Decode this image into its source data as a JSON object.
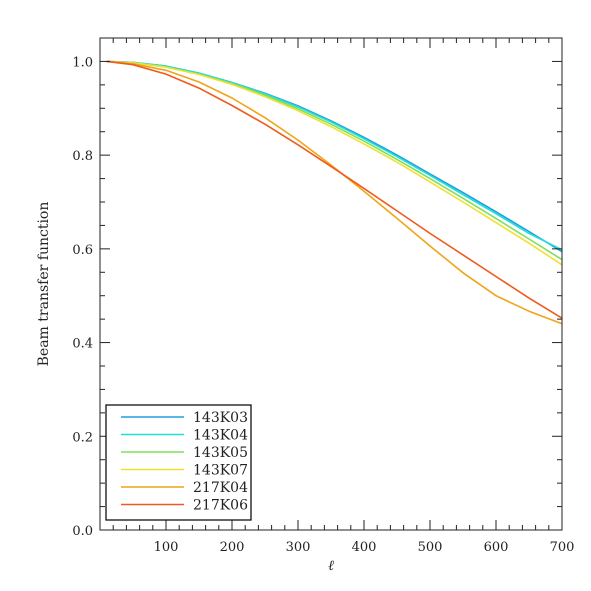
{
  "chart_data": {
    "type": "line",
    "title": "",
    "xlabel": "ℓ",
    "ylabel": "Beam transfer function",
    "xlim": [
      0,
      700
    ],
    "ylim": [
      0.0,
      1.05
    ],
    "xticks": [
      100,
      200,
      300,
      400,
      500,
      600,
      700
    ],
    "yticks": [
      0.0,
      0.2,
      0.4,
      0.6,
      0.8,
      1.0
    ],
    "xtick_labels": [
      "100",
      "200",
      "300",
      "400",
      "500",
      "600",
      "700"
    ],
    "ytick_labels": [
      "0.0",
      "0.2",
      "0.4",
      "0.6",
      "0.8",
      "1.0"
    ],
    "grid": false,
    "legend_position": "bottom-left",
    "series": [
      {
        "name": "143K03",
        "color": "#1f9fe0",
        "x": [
          10,
          50,
          100,
          150,
          200,
          250,
          300,
          350,
          400,
          450,
          500,
          550,
          600,
          650,
          700
        ],
        "y": [
          1.0,
          0.998,
          0.99,
          0.975,
          0.955,
          0.932,
          0.905,
          0.873,
          0.838,
          0.8,
          0.76,
          0.72,
          0.679,
          0.637,
          0.594
        ]
      },
      {
        "name": "143K04",
        "color": "#22dcd8",
        "x": [
          10,
          50,
          100,
          150,
          200,
          250,
          300,
          350,
          400,
          450,
          500,
          550,
          600,
          650,
          700
        ],
        "y": [
          1.0,
          0.998,
          0.99,
          0.975,
          0.955,
          0.931,
          0.903,
          0.871,
          0.835,
          0.797,
          0.757,
          0.716,
          0.675,
          0.633,
          0.598
        ]
      },
      {
        "name": "143K05",
        "color": "#7ee05a",
        "x": [
          10,
          50,
          100,
          150,
          200,
          250,
          300,
          350,
          400,
          450,
          500,
          550,
          600,
          650,
          700
        ],
        "y": [
          1.0,
          0.997,
          0.988,
          0.973,
          0.953,
          0.928,
          0.899,
          0.866,
          0.83,
          0.791,
          0.75,
          0.708,
          0.665,
          0.621,
          0.577
        ]
      },
      {
        "name": "143K07",
        "color": "#f0e030",
        "x": [
          10,
          50,
          100,
          150,
          200,
          250,
          300,
          350,
          400,
          450,
          500,
          550,
          600,
          650,
          700
        ],
        "y": [
          1.0,
          0.997,
          0.988,
          0.972,
          0.951,
          0.925,
          0.895,
          0.861,
          0.824,
          0.785,
          0.743,
          0.7,
          0.656,
          0.612,
          0.566
        ]
      },
      {
        "name": "217K04",
        "color": "#f0a418",
        "x": [
          10,
          50,
          100,
          150,
          200,
          250,
          300,
          350,
          400,
          450,
          500,
          550,
          600,
          650,
          700
        ],
        "y": [
          1.0,
          0.995,
          0.981,
          0.956,
          0.922,
          0.88,
          0.832,
          0.779,
          0.723,
          0.665,
          0.606,
          0.549,
          0.5,
          0.467,
          0.44
        ]
      },
      {
        "name": "217K06",
        "color": "#f05a1c",
        "x": [
          10,
          50,
          100,
          150,
          200,
          250,
          300,
          350,
          400,
          450,
          500,
          550,
          600,
          650,
          700
        ],
        "y": [
          1.0,
          0.993,
          0.973,
          0.943,
          0.906,
          0.866,
          0.822,
          0.776,
          0.729,
          0.681,
          0.633,
          0.587,
          0.541,
          0.495,
          0.452
        ]
      }
    ]
  }
}
